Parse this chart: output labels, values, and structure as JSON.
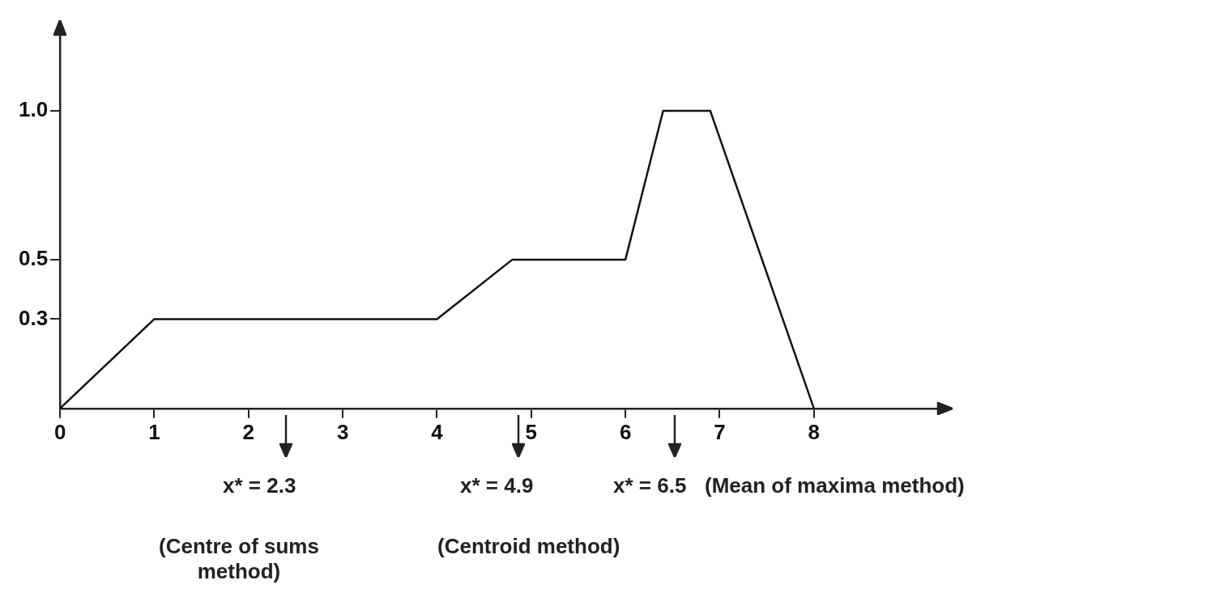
{
  "chart_data": {
    "type": "line",
    "x": [
      0,
      1,
      4,
      4.8,
      6,
      6.4,
      6.9,
      8
    ],
    "series": [
      {
        "color": "#111111",
        "values": [
          0,
          0.3,
          0.3,
          0.5,
          0.5,
          1,
          1,
          0
        ]
      }
    ],
    "xlim": [
      0,
      9.3
    ],
    "ylim": [
      0,
      1.25
    ],
    "xticks": [
      0,
      1,
      2,
      3,
      4,
      5,
      6,
      7,
      8
    ],
    "yticks": [
      {
        "value": 0.3,
        "label": "0.3"
      },
      {
        "value": 0.5,
        "label": "0.5"
      },
      {
        "value": 1,
        "label": "1.0"
      }
    ],
    "grid": false,
    "legend": false,
    "marker": "none",
    "line_style": "solid",
    "annotations": [
      "x* = 2.3",
      "x* = 4.9",
      "x* = 6.5",
      "(Centre of sums method)",
      "(Centroid method)",
      "(Mean of maxima method)"
    ]
  }
}
